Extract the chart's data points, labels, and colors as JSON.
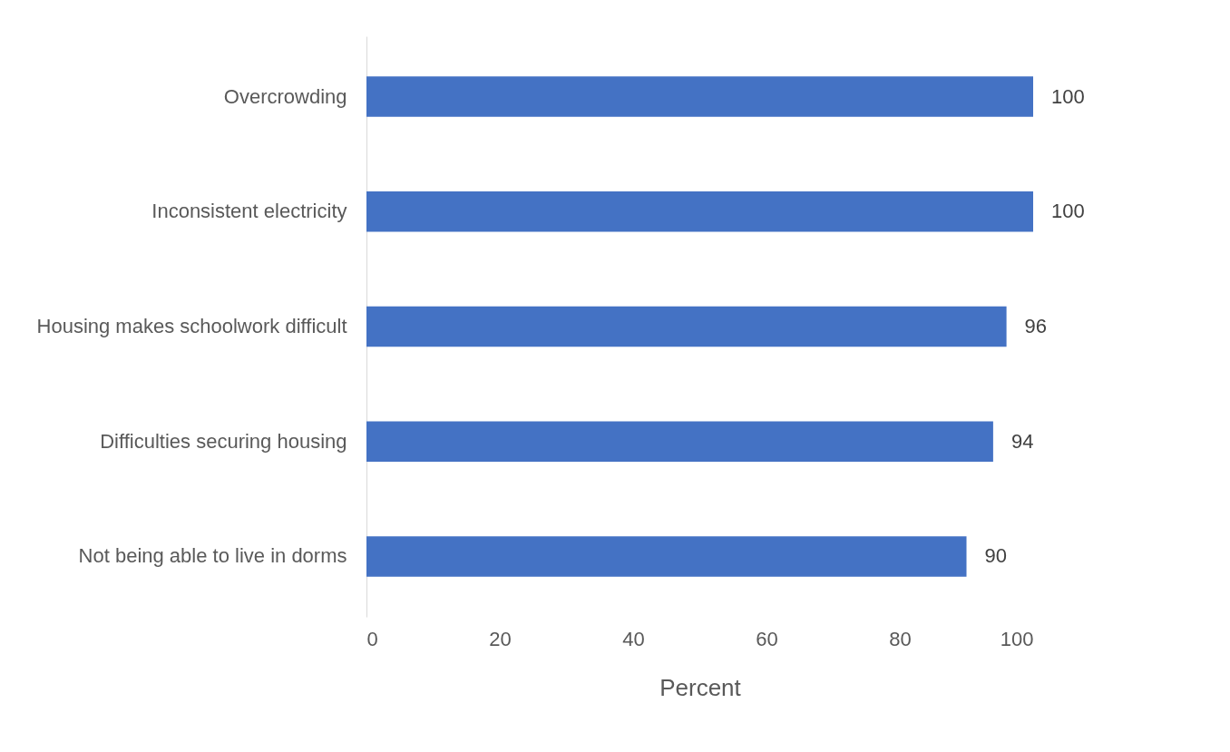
{
  "chart_data": {
    "type": "bar",
    "orientation": "horizontal",
    "xlabel": "Percent",
    "categories": [
      "Overcrowding",
      "Inconsistent electricity",
      "Housing makes schoolwork difficult",
      "Difficulties securing housing",
      "Not being able to live in dorms"
    ],
    "values": [
      100,
      100,
      96,
      94,
      90
    ],
    "color": "#4472c4",
    "xlim": [
      0,
      100
    ],
    "xticks": [
      0,
      20,
      40,
      60,
      80,
      100
    ],
    "data_labels": true,
    "grid": false
  }
}
